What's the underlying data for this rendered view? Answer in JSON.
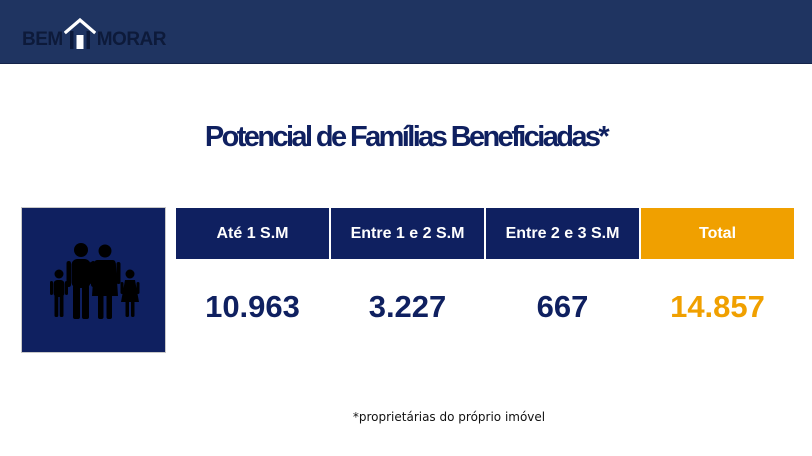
{
  "logo": {
    "left_text": "BEM",
    "right_text": "MORAR"
  },
  "title": "Potencial de Famílias Beneficiadas*",
  "table": {
    "columns": [
      {
        "label": "Até 1 S.M",
        "value": "10.963"
      },
      {
        "label": "Entre 1 e 2 S.M",
        "value": "3.227"
      },
      {
        "label": "Entre 2 e 3 S.M",
        "value": "667"
      },
      {
        "label": "Total",
        "value": "14.857"
      }
    ]
  },
  "footnote": "*proprietárias do próprio imóvel",
  "icons": {
    "logo_house": "house-icon",
    "family": "family-icon"
  },
  "colors": {
    "header": "#1f3461",
    "navy": "#0f2060",
    "orange": "#f0a000"
  }
}
